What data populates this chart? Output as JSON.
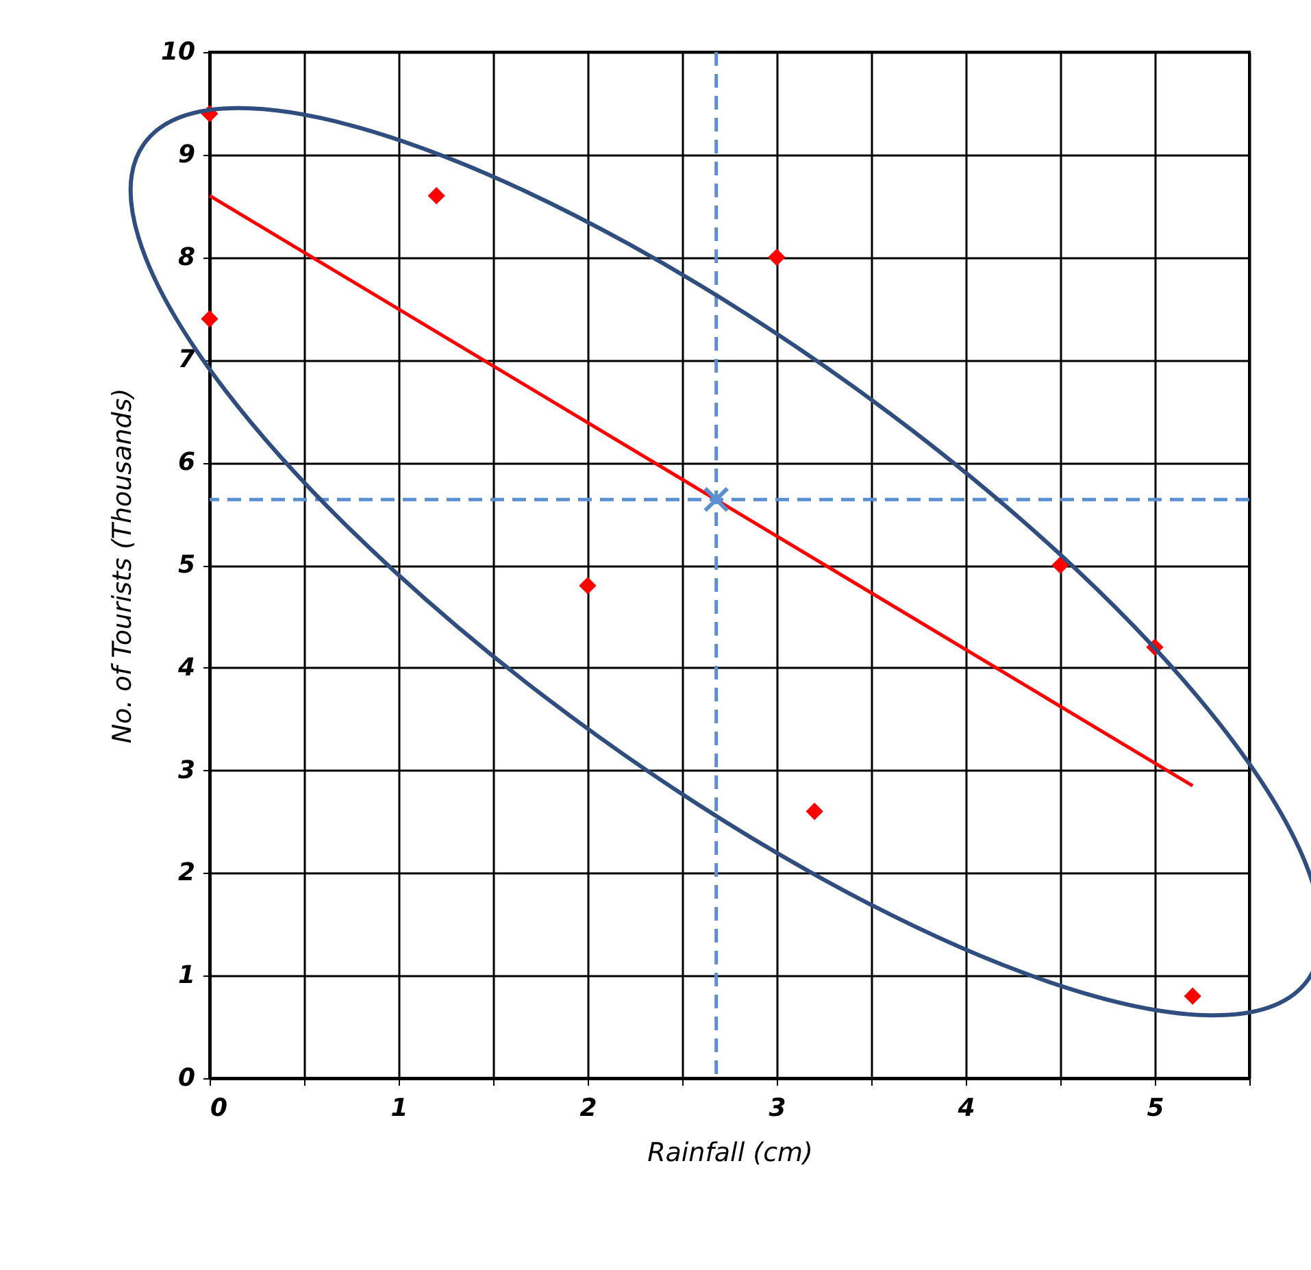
{
  "chart_data": {
    "type": "scatter",
    "xlabel": "Rainfall (cm)",
    "ylabel": "No. of Tourists (Thousands)",
    "xlim": [
      0,
      5.5
    ],
    "ylim": [
      0,
      10
    ],
    "xticks": [
      0,
      {
        "value": 0.5,
        "label": null
      },
      1,
      {
        "value": 1.5,
        "label": null
      },
      2,
      {
        "value": 2.5,
        "label": null
      },
      3,
      {
        "value": 3.5,
        "label": null
      },
      4,
      {
        "value": 4.5,
        "label": null
      },
      5,
      {
        "value": 5.5,
        "label": null
      }
    ],
    "yticks": [
      0,
      1,
      2,
      3,
      4,
      5,
      6,
      7,
      8,
      9,
      10
    ],
    "grid": true,
    "series": [
      {
        "marker": "diamond",
        "color": "#ff0000",
        "x": [
          0,
          0,
          1.2,
          2,
          3,
          3.2,
          4.5,
          5,
          5.2
        ],
        "values": [
          9.4,
          7.4,
          8.6,
          4.8,
          8,
          2.6,
          5,
          4.2,
          0.8
        ]
      },
      {
        "type": "line",
        "color": "#ff0000",
        "x": [
          0,
          5.2
        ],
        "values": [
          8.6,
          2.85
        ]
      },
      {
        "type": "scatter",
        "marker": "cross",
        "color": "#5b8fd0",
        "x": [
          2.68
        ],
        "values": [
          5.64
        ]
      }
    ],
    "ref_lines": [
      {
        "axis": "x",
        "value": 2.68,
        "color": "#5b8fd0",
        "line_style": "dashed"
      },
      {
        "axis": "y",
        "value": 5.64,
        "color": "#5b8fd0",
        "line_style": "dashed"
      }
    ]
  }
}
